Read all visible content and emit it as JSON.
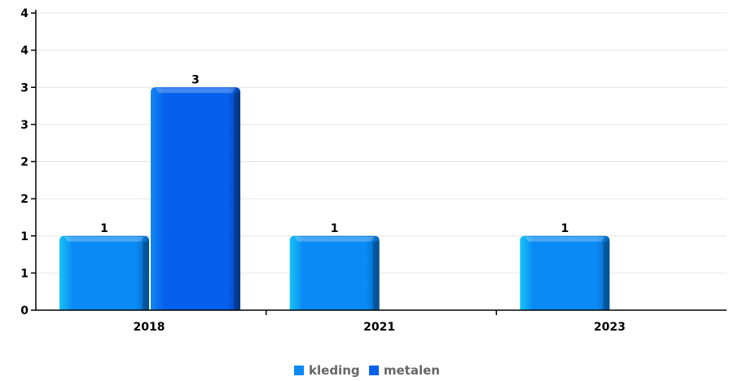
{
  "chart_data": {
    "type": "bar",
    "categories": [
      "2018",
      "2021",
      "2023"
    ],
    "series": [
      {
        "name": "kleding",
        "values": [
          1,
          1,
          1
        ],
        "color": "#0A8AF5"
      },
      {
        "name": "metalen",
        "values": [
          3,
          0,
          0
        ],
        "color": "#0560EE"
      }
    ],
    "data_labels": [
      [
        "1",
        "1",
        "1"
      ],
      [
        "3",
        "",
        ""
      ]
    ],
    "ylim": [
      0,
      4
    ],
    "y_ticks": [
      0,
      0.5,
      1,
      1.5,
      2,
      2.5,
      3,
      3.5,
      4
    ],
    "y_tick_labels": [
      "0",
      "1",
      "1",
      "2",
      "2",
      "3",
      "3",
      "4",
      "4"
    ],
    "title": "",
    "xlabel": "",
    "ylabel": "",
    "grid": true,
    "legend": "bottom-center"
  }
}
